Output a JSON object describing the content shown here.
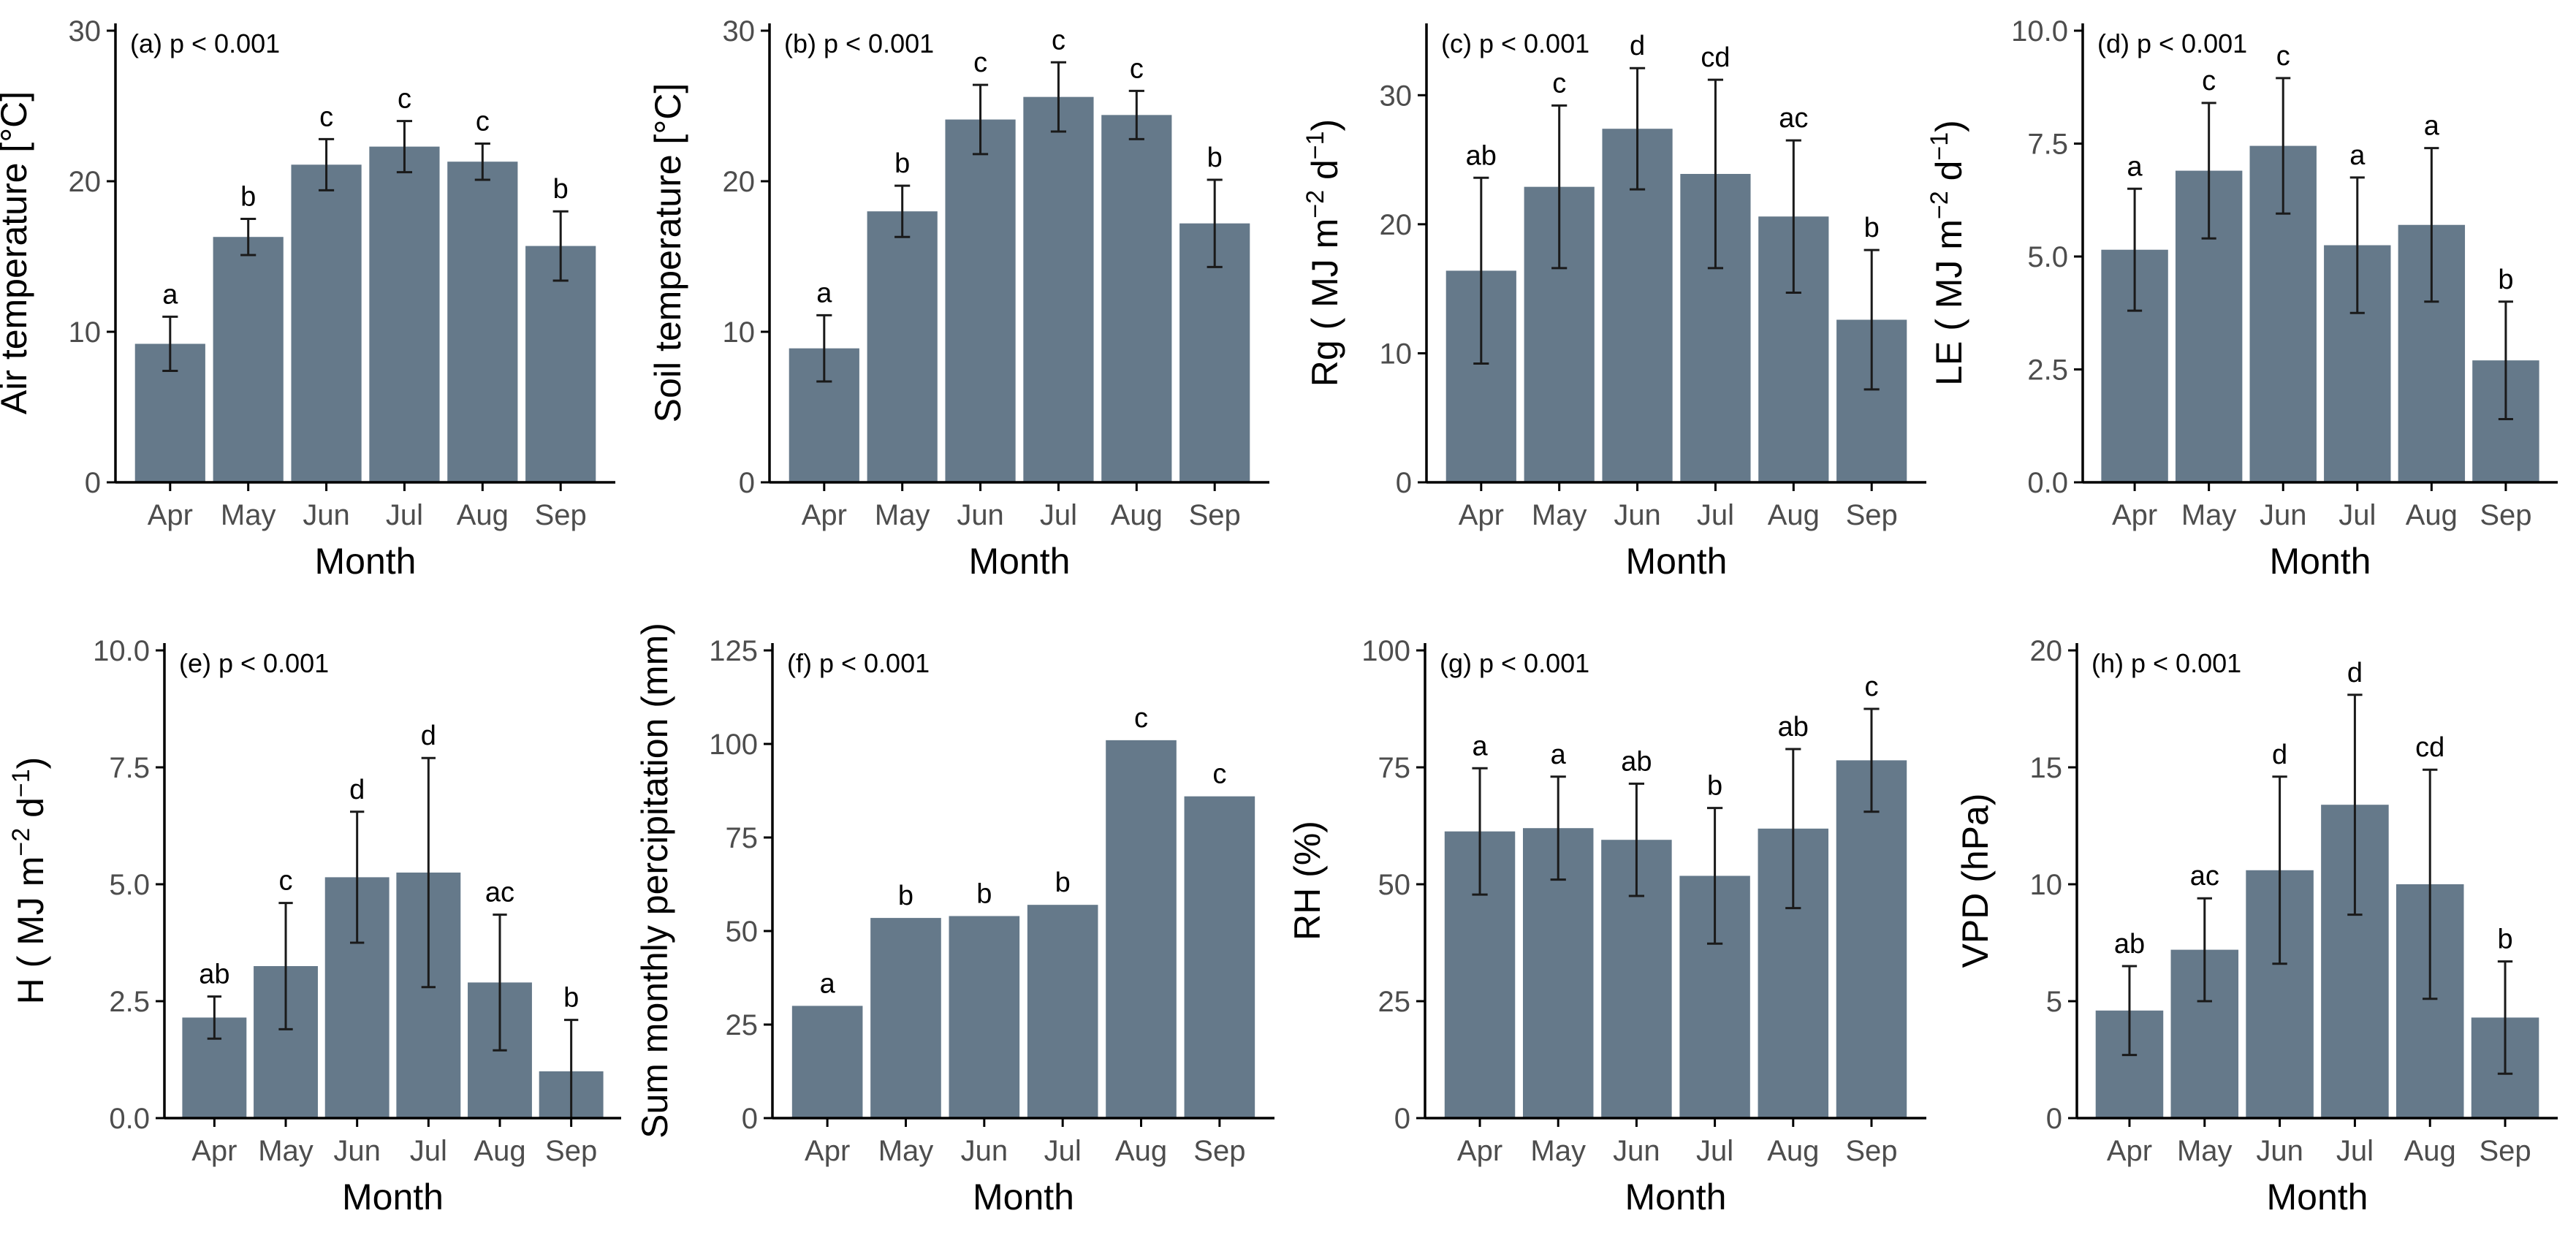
{
  "figure": {
    "bar_color": "#65798a",
    "axis_color": "#000000",
    "tick_label_color": "#4d4d4d"
  },
  "chart_data": [
    {
      "type": "bar",
      "panel": "(a)",
      "annotation": "p < 0.001",
      "categories": [
        "Apr",
        "May",
        "Jun",
        "Jul",
        "Aug",
        "Sep"
      ],
      "values": [
        9.2,
        16.3,
        21.1,
        22.3,
        21.3,
        15.7
      ],
      "errors": [
        1.8,
        1.2,
        1.7,
        1.7,
        1.2,
        2.3
      ],
      "letters": [
        "a",
        "b",
        "c",
        "c",
        "c",
        "b"
      ],
      "xlabel": "Month",
      "ylabel": "Air temperature [°C]",
      "ylim": [
        0,
        30
      ],
      "yticks": [
        0,
        10,
        20,
        30
      ],
      "ytick_labels": [
        "0",
        "10",
        "20",
        "30"
      ]
    },
    {
      "type": "bar",
      "panel": "(b)",
      "annotation": "p < 0.001",
      "categories": [
        "Apr",
        "May",
        "Jun",
        "Jul",
        "Aug",
        "Sep"
      ],
      "values": [
        8.9,
        18.0,
        24.1,
        25.6,
        24.4,
        17.2
      ],
      "errors": [
        2.2,
        1.7,
        2.3,
        2.3,
        1.6,
        2.9
      ],
      "letters": [
        "a",
        "b",
        "c",
        "c",
        "c",
        "b"
      ],
      "xlabel": "Month",
      "ylabel": "Soil temperature [°C]",
      "ylim": [
        0,
        30
      ],
      "yticks": [
        0,
        10,
        20,
        30
      ],
      "ytick_labels": [
        "0",
        "10",
        "20",
        "30"
      ]
    },
    {
      "type": "bar",
      "panel": "(c)",
      "annotation": "p < 0.001",
      "categories": [
        "Apr",
        "May",
        "Jun",
        "Jul",
        "Aug",
        "Sep"
      ],
      "values": [
        16.4,
        22.9,
        27.4,
        23.9,
        20.6,
        12.6
      ],
      "errors": [
        7.2,
        6.3,
        4.7,
        7.3,
        5.9,
        5.4
      ],
      "letters": [
        "ab",
        "c",
        "d",
        "cd",
        "ac",
        "b"
      ],
      "xlabel": "Month",
      "ylabel": "Rg ( MJ m",
      "ylabel_parts": [
        "Rg ( MJ m",
        "−2",
        " d",
        "−1",
        ")"
      ],
      "ylim": [
        0,
        35
      ],
      "yticks": [
        0,
        10,
        20,
        30
      ],
      "ytick_labels": [
        "0",
        "10",
        "20",
        "30"
      ]
    },
    {
      "type": "bar",
      "panel": "(d)",
      "annotation": "p < 0.001",
      "categories": [
        "Apr",
        "May",
        "Jun",
        "Jul",
        "Aug",
        "Sep"
      ],
      "values": [
        5.15,
        6.9,
        7.45,
        5.25,
        5.7,
        2.7
      ],
      "errors": [
        1.35,
        1.5,
        1.5,
        1.5,
        1.7,
        1.3
      ],
      "letters": [
        "a",
        "c",
        "c",
        "a",
        "a",
        "b"
      ],
      "xlabel": "Month",
      "ylabel": "LE ( MJ m",
      "ylabel_parts": [
        "LE ( MJ m",
        "−2",
        " d",
        "−1",
        ")"
      ],
      "ylim": [
        0,
        10
      ],
      "yticks": [
        0,
        2.5,
        5,
        7.5,
        10
      ],
      "ytick_labels": [
        "0.0",
        "2.5",
        "5.0",
        "7.5",
        "10.0"
      ]
    },
    {
      "type": "bar",
      "panel": "(e)",
      "annotation": "p < 0.001",
      "categories": [
        "Apr",
        "May",
        "Jun",
        "Jul",
        "Aug",
        "Sep"
      ],
      "values": [
        2.15,
        3.25,
        5.15,
        5.25,
        2.9,
        1.0
      ],
      "errors": [
        0.45,
        1.35,
        1.4,
        2.45,
        1.45,
        1.1
      ],
      "letters": [
        "ab",
        "c",
        "d",
        "d",
        "ac",
        "b"
      ],
      "xlabel": "Month",
      "ylabel": "H ( MJ m",
      "ylabel_parts": [
        "H ( MJ m",
        "−2",
        " d",
        "−1",
        ")"
      ],
      "ylim": [
        0,
        10
      ],
      "yticks": [
        0,
        2.5,
        5,
        7.5,
        10
      ],
      "ytick_labels": [
        "0.0",
        "2.5",
        "5.0",
        "7.5",
        "10.0"
      ]
    },
    {
      "type": "bar",
      "panel": "(f)",
      "annotation": "p < 0.001",
      "categories": [
        "Apr",
        "May",
        "Jun",
        "Jul",
        "Aug",
        "Sep"
      ],
      "values": [
        30,
        53.5,
        54,
        57,
        101,
        86
      ],
      "letters": [
        "a",
        "b",
        "b",
        "b",
        "c",
        "c"
      ],
      "xlabel": "Month",
      "ylabel": "Sum monthly percipitation (mm)",
      "ylim": [
        0,
        125
      ],
      "yticks": [
        0,
        25,
        50,
        75,
        100,
        125
      ],
      "ytick_labels": [
        "0",
        "25",
        "50",
        "75",
        "100",
        "125"
      ]
    },
    {
      "type": "bar",
      "panel": "(g)",
      "annotation": "p < 0.001",
      "categories": [
        "Apr",
        "May",
        "Jun",
        "Jul",
        "Aug",
        "Sep"
      ],
      "values": [
        61.3,
        62.0,
        59.5,
        51.8,
        61.9,
        76.5
      ],
      "errors": [
        13.5,
        11,
        12,
        14.5,
        17,
        11
      ],
      "letters": [
        "a",
        "a",
        "ab",
        "b",
        "ab",
        "c"
      ],
      "xlabel": "Month",
      "ylabel": "RH (%)",
      "ylim": [
        0,
        100
      ],
      "yticks": [
        0,
        25,
        50,
        75,
        100
      ],
      "ytick_labels": [
        "0",
        "25",
        "50",
        "75",
        "100"
      ]
    },
    {
      "type": "bar",
      "panel": "(h)",
      "annotation": "p < 0.001",
      "categories": [
        "Apr",
        "May",
        "Jun",
        "Jul",
        "Aug",
        "Sep"
      ],
      "values": [
        4.6,
        7.2,
        10.6,
        13.4,
        10.0,
        4.3
      ],
      "errors": [
        1.9,
        2.2,
        4.0,
        4.7,
        4.9,
        2.4
      ],
      "letters": [
        "ab",
        "ac",
        "d",
        "d",
        "cd",
        "b"
      ],
      "xlabel": "Month",
      "ylabel": "VPD (hPa)",
      "ylim": [
        0,
        20
      ],
      "yticks": [
        0,
        5,
        10,
        15,
        20
      ],
      "ytick_labels": [
        "0",
        "5",
        "10",
        "15",
        "20"
      ]
    }
  ]
}
